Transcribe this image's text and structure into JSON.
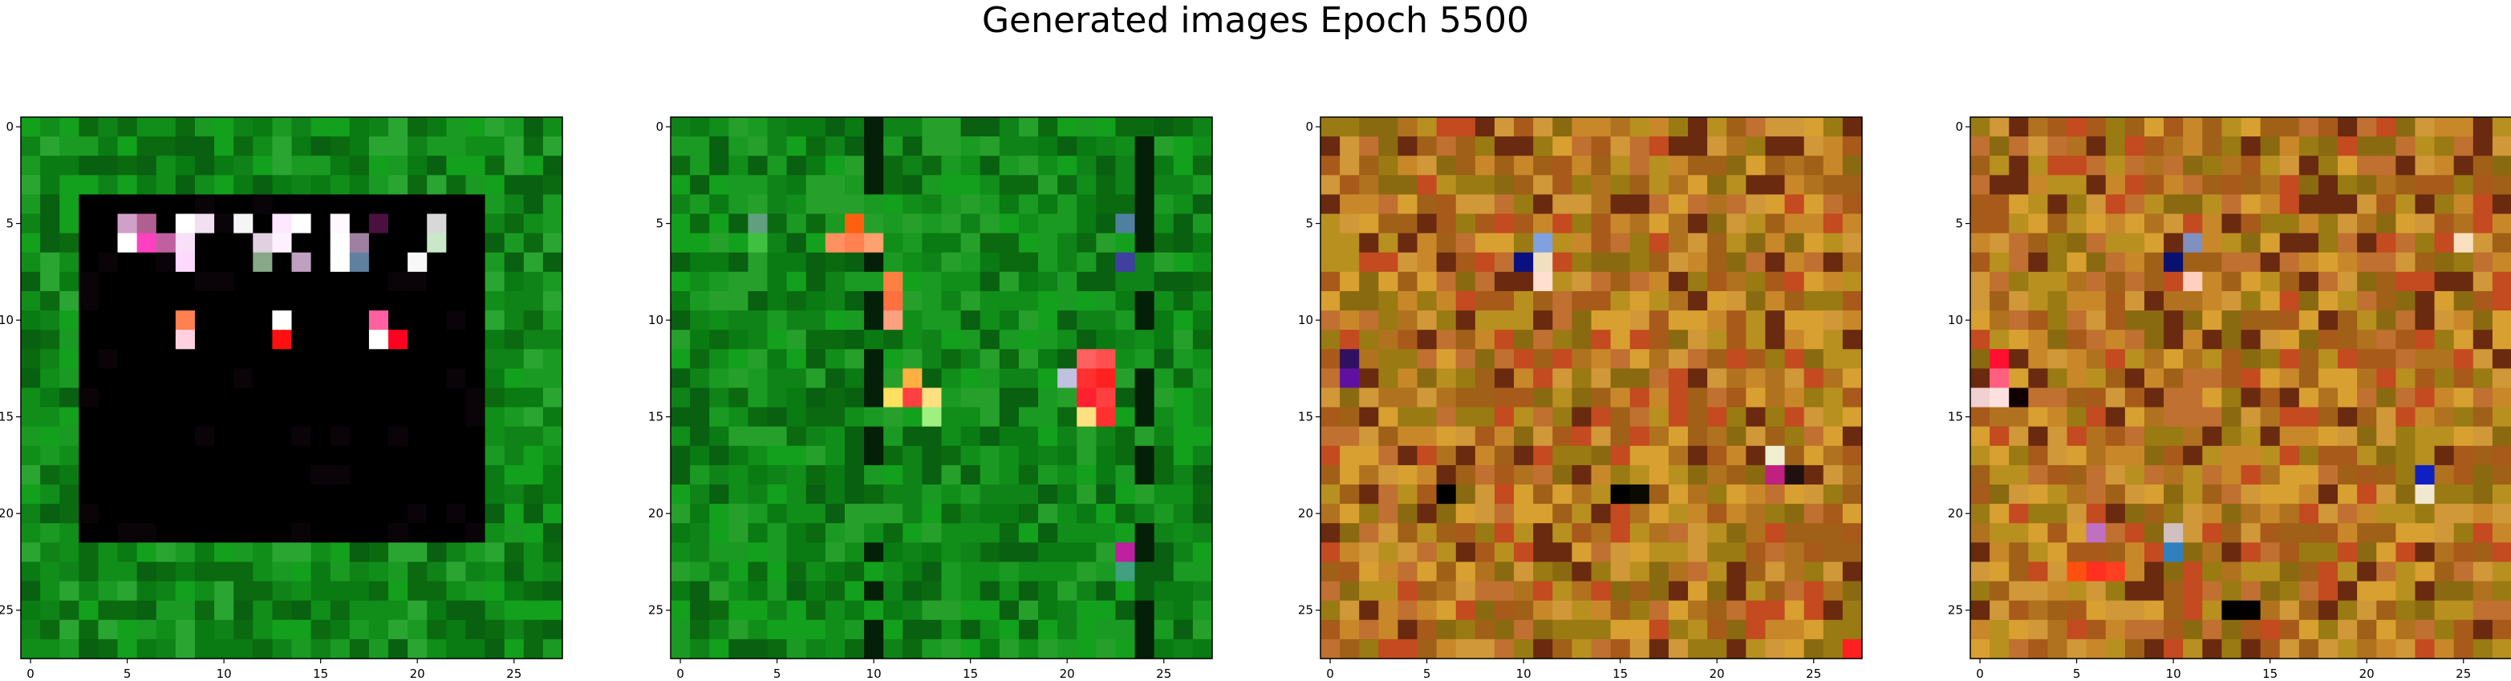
{
  "figure": {
    "title": "Generated images Epoch 5500"
  },
  "chart_data": [
    {
      "type": "heatmap",
      "title": "",
      "description_style": "green background with large black square block, bright pixels along top rows",
      "grid_size": [
        28,
        28
      ],
      "x_ticks": [
        0,
        5,
        10,
        15,
        20,
        25
      ],
      "y_ticks": [
        0,
        5,
        10,
        15,
        20,
        25
      ],
      "xlim": [
        -0.5,
        27.5
      ],
      "ylim": [
        27.5,
        -0.5
      ],
      "palette": [
        "#0a7a12",
        "#118d1a",
        "#0b6a0f",
        "#1a9a22",
        "#086010",
        "#13a01c",
        "#0f8318",
        "#2aa532"
      ],
      "block": {
        "rows": [
          4,
          21
        ],
        "cols": [
          3,
          23
        ],
        "color": "#000000"
      },
      "highlights": [
        {
          "r": 5,
          "c": 5,
          "color": "#cfa0c8"
        },
        {
          "r": 5,
          "c": 6,
          "color": "#b06090"
        },
        {
          "r": 5,
          "c": 8,
          "color": "#ffffff"
        },
        {
          "r": 5,
          "c": 9,
          "color": "#f0e0f0"
        },
        {
          "r": 5,
          "c": 11,
          "color": "#f5f5f5"
        },
        {
          "r": 5,
          "c": 13,
          "color": "#ffe8ff"
        },
        {
          "r": 5,
          "c": 14,
          "color": "#ffffff"
        },
        {
          "r": 5,
          "c": 16,
          "color": "#fff8ff"
        },
        {
          "r": 5,
          "c": 18,
          "color": "#4a1040"
        },
        {
          "r": 5,
          "c": 21,
          "color": "#d8d8d8"
        },
        {
          "r": 6,
          "c": 5,
          "color": "#ffffff"
        },
        {
          "r": 6,
          "c": 6,
          "color": "#ff40c0"
        },
        {
          "r": 6,
          "c": 7,
          "color": "#c060a0"
        },
        {
          "r": 6,
          "c": 8,
          "color": "#f8e0f8"
        },
        {
          "r": 6,
          "c": 12,
          "color": "#e0d0e0"
        },
        {
          "r": 6,
          "c": 13,
          "color": "#fff0ff"
        },
        {
          "r": 6,
          "c": 16,
          "color": "#ffffff"
        },
        {
          "r": 6,
          "c": 17,
          "color": "#a080a0"
        },
        {
          "r": 6,
          "c": 21,
          "color": "#c8e8c8"
        },
        {
          "r": 7,
          "c": 8,
          "color": "#ffd8ff"
        },
        {
          "r": 7,
          "c": 12,
          "color": "#88a888"
        },
        {
          "r": 7,
          "c": 14,
          "color": "#c0a0c0"
        },
        {
          "r": 7,
          "c": 16,
          "color": "#ffffff"
        },
        {
          "r": 7,
          "c": 20,
          "color": "#f8f8f8"
        },
        {
          "r": 7,
          "c": 17,
          "color": "#6080a0"
        },
        {
          "r": 10,
          "c": 8,
          "color": "#ff8050"
        },
        {
          "r": 10,
          "c": 13,
          "color": "#ffffff"
        },
        {
          "r": 10,
          "c": 18,
          "color": "#ff60a0"
        },
        {
          "r": 11,
          "c": 8,
          "color": "#ffd0e0"
        },
        {
          "r": 11,
          "c": 13,
          "color": "#ff1010"
        },
        {
          "r": 11,
          "c": 18,
          "color": "#ffffff"
        },
        {
          "r": 11,
          "c": 19,
          "color": "#ff0020"
        }
      ]
    },
    {
      "type": "heatmap",
      "title": "",
      "description_style": "green noise with dark vertical lines and a few bright pixels",
      "grid_size": [
        28,
        28
      ],
      "x_ticks": [
        0,
        5,
        10,
        15,
        20,
        25
      ],
      "y_ticks": [
        0,
        5,
        10,
        15,
        20,
        25
      ],
      "xlim": [
        -0.5,
        27.5
      ],
      "ylim": [
        27.5,
        -0.5
      ],
      "palette": [
        "#0a7a12",
        "#118d1a",
        "#0b6a0f",
        "#1a9a22",
        "#086010",
        "#13a01c",
        "#0f8318",
        "#26a02a"
      ],
      "highlights": [
        {
          "r": 5,
          "c": 4,
          "color": "#60a080"
        },
        {
          "r": 5,
          "c": 9,
          "color": "#ff6010"
        },
        {
          "r": 5,
          "c": 23,
          "color": "#5080a0"
        },
        {
          "r": 6,
          "c": 8,
          "color": "#ff9060"
        },
        {
          "r": 6,
          "c": 9,
          "color": "#ff8050"
        },
        {
          "r": 6,
          "c": 10,
          "color": "#ffa070"
        },
        {
          "r": 6,
          "c": 4,
          "color": "#40c040"
        },
        {
          "r": 7,
          "c": 23,
          "color": "#4040a0"
        },
        {
          "r": 8,
          "c": 11,
          "color": "#ff8040"
        },
        {
          "r": 9,
          "c": 11,
          "color": "#ff7040"
        },
        {
          "r": 10,
          "c": 11,
          "color": "#ffa080"
        },
        {
          "r": 12,
          "c": 21,
          "color": "#ff6060"
        },
        {
          "r": 12,
          "c": 22,
          "color": "#ff5050"
        },
        {
          "r": 13,
          "c": 12,
          "color": "#ffb040"
        },
        {
          "r": 13,
          "c": 20,
          "color": "#c0c0e0"
        },
        {
          "r": 13,
          "c": 21,
          "color": "#ff3030"
        },
        {
          "r": 13,
          "c": 22,
          "color": "#ff2020"
        },
        {
          "r": 14,
          "c": 11,
          "color": "#ffe060"
        },
        {
          "r": 14,
          "c": 12,
          "color": "#ff4040"
        },
        {
          "r": 14,
          "c": 13,
          "color": "#ffe080"
        },
        {
          "r": 14,
          "c": 21,
          "color": "#ff2030"
        },
        {
          "r": 14,
          "c": 22,
          "color": "#ff4040"
        },
        {
          "r": 15,
          "c": 21,
          "color": "#ffe080"
        },
        {
          "r": 15,
          "c": 22,
          "color": "#ff3030"
        },
        {
          "r": 15,
          "c": 13,
          "color": "#a0f080"
        },
        {
          "r": 22,
          "c": 23,
          "color": "#c020a0"
        },
        {
          "r": 23,
          "c": 23,
          "color": "#40a080"
        }
      ],
      "dark_columns": [
        10,
        24
      ],
      "dark_rows": []
    },
    {
      "type": "heatmap",
      "title": "",
      "description_style": "orange/olive/brown noise with a few dark and bright pixels",
      "grid_size": [
        28,
        28
      ],
      "x_ticks": [
        0,
        5,
        10,
        15,
        20,
        25
      ],
      "y_ticks": [
        0,
        5,
        10,
        15,
        20,
        25
      ],
      "xlim": [
        -0.5,
        27.5
      ],
      "ylim": [
        27.5,
        -0.5
      ],
      "palette": [
        "#c8882a",
        "#b0721e",
        "#d8a030",
        "#a06018",
        "#b89020",
        "#c07030",
        "#8a6a10",
        "#d09838",
        "#a85a1a",
        "#9a7a12",
        "#c44a20",
        "#6a2a10"
      ],
      "highlights": [
        {
          "r": 6,
          "c": 11,
          "color": "#80a0e0"
        },
        {
          "r": 7,
          "c": 10,
          "color": "#0a1080"
        },
        {
          "r": 7,
          "c": 11,
          "color": "#f0e0c0"
        },
        {
          "r": 8,
          "c": 11,
          "color": "#ffe0d0"
        },
        {
          "r": 17,
          "c": 23,
          "color": "#f0f0d0"
        },
        {
          "r": 18,
          "c": 23,
          "color": "#c02080"
        },
        {
          "r": 18,
          "c": 24,
          "color": "#201010"
        },
        {
          "r": 19,
          "c": 6,
          "color": "#000000"
        },
        {
          "r": 19,
          "c": 15,
          "color": "#000000"
        },
        {
          "r": 19,
          "c": 16,
          "color": "#0a0a00"
        },
        {
          "r": 12,
          "c": 1,
          "color": "#301060"
        },
        {
          "r": 13,
          "c": 1,
          "color": "#6010a0"
        },
        {
          "r": 27,
          "c": 27,
          "color": "#ff2020"
        }
      ]
    },
    {
      "type": "heatmap",
      "title": "",
      "description_style": "orange/olive/brown noise with a few dark and bright pixels",
      "grid_size": [
        28,
        28
      ],
      "x_ticks": [
        0,
        5,
        10,
        15,
        20,
        25
      ],
      "y_ticks": [
        0,
        5,
        10,
        15,
        20,
        25
      ],
      "xlim": [
        -0.5,
        27.5
      ],
      "ylim": [
        27.5,
        -0.5
      ],
      "palette": [
        "#c8882a",
        "#b0721e",
        "#d8a030",
        "#a06018",
        "#b89020",
        "#c07030",
        "#8a6a10",
        "#d09838",
        "#a85a1a",
        "#9a7a12",
        "#c44a20",
        "#6a2a10"
      ],
      "highlights": [
        {
          "r": 6,
          "c": 11,
          "color": "#8090c0"
        },
        {
          "r": 7,
          "c": 10,
          "color": "#0a1070"
        },
        {
          "r": 8,
          "c": 11,
          "color": "#ffd0c0"
        },
        {
          "r": 6,
          "c": 25,
          "color": "#f8e0c0"
        },
        {
          "r": 12,
          "c": 1,
          "color": "#ff1030"
        },
        {
          "r": 13,
          "c": 1,
          "color": "#ff6080"
        },
        {
          "r": 14,
          "c": 0,
          "color": "#f0d0d0"
        },
        {
          "r": 14,
          "c": 1,
          "color": "#ffe0e0"
        },
        {
          "r": 14,
          "c": 2,
          "color": "#100000"
        },
        {
          "r": 18,
          "c": 23,
          "color": "#1020c0"
        },
        {
          "r": 19,
          "c": 23,
          "color": "#f0e8d0"
        },
        {
          "r": 21,
          "c": 6,
          "color": "#c070c0"
        },
        {
          "r": 22,
          "c": 10,
          "color": "#3080c0"
        },
        {
          "r": 21,
          "c": 10,
          "color": "#d0c0c0"
        },
        {
          "r": 23,
          "c": 5,
          "color": "#ff5010"
        },
        {
          "r": 23,
          "c": 6,
          "color": "#ff3020"
        },
        {
          "r": 23,
          "c": 7,
          "color": "#ff4020"
        },
        {
          "r": 25,
          "c": 13,
          "color": "#000000"
        },
        {
          "r": 25,
          "c": 14,
          "color": "#050000"
        }
      ]
    }
  ]
}
